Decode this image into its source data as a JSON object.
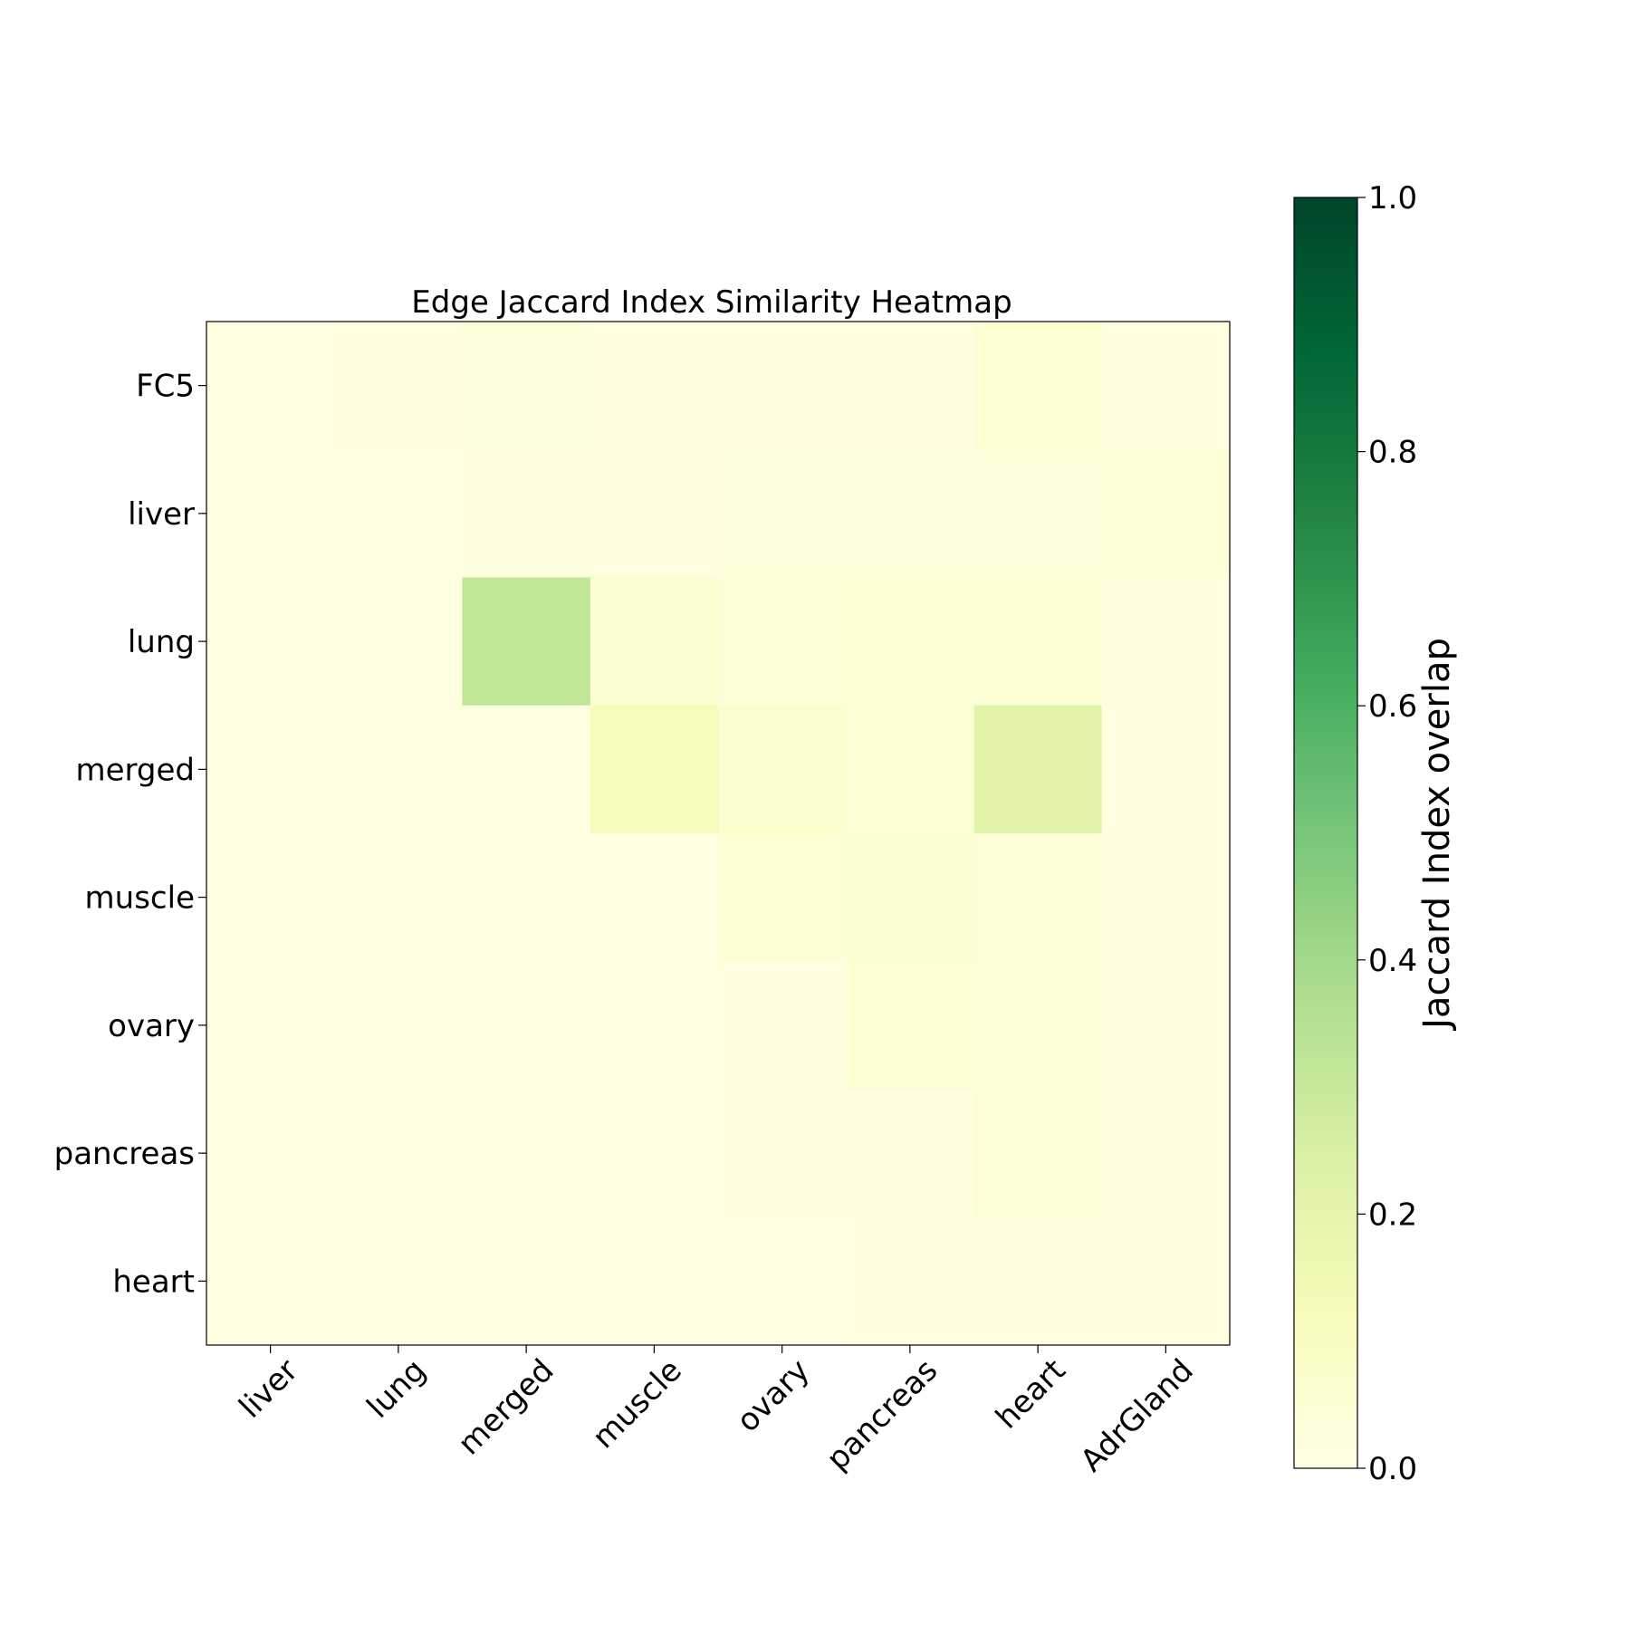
{
  "chart_data": {
    "type": "heatmap",
    "title": "Edge Jaccard Index Similarity Heatmap",
    "xlabel": "",
    "ylabel": "",
    "x_categories": [
      "liver",
      "lung",
      "merged",
      "muscle",
      "ovary",
      "pancreas",
      "heart",
      "AdrGland"
    ],
    "y_categories": [
      "FC5",
      "liver",
      "lung",
      "merged",
      "muscle",
      "ovary",
      "pancreas",
      "heart"
    ],
    "values": [
      [
        0.01,
        0.02,
        0.03,
        0.02,
        0.02,
        0.02,
        0.05,
        0.02
      ],
      [
        0.01,
        0.01,
        0.02,
        0.02,
        0.03,
        0.03,
        0.03,
        0.04
      ],
      [
        0.01,
        0.01,
        0.32,
        0.06,
        0.04,
        0.05,
        0.05,
        0.02
      ],
      [
        0.01,
        0.01,
        0.01,
        0.12,
        0.07,
        0.05,
        0.22,
        0.02
      ],
      [
        0.01,
        0.01,
        0.01,
        0.01,
        0.05,
        0.06,
        0.04,
        0.02
      ],
      [
        0.01,
        0.01,
        0.01,
        0.01,
        0.02,
        0.05,
        0.04,
        0.02
      ],
      [
        0.01,
        0.01,
        0.01,
        0.01,
        0.02,
        0.02,
        0.04,
        0.02
      ],
      [
        0.01,
        0.01,
        0.01,
        0.01,
        0.01,
        0.02,
        0.02,
        0.02
      ]
    ],
    "colormap": "YlGn",
    "colorbar": {
      "label": "Jaccard Index overlap",
      "range": [
        0.0,
        1.0
      ],
      "ticks": [
        "0.0",
        "0.2",
        "0.4",
        "0.6",
        "0.8",
        "1.0"
      ]
    },
    "grid": false
  }
}
